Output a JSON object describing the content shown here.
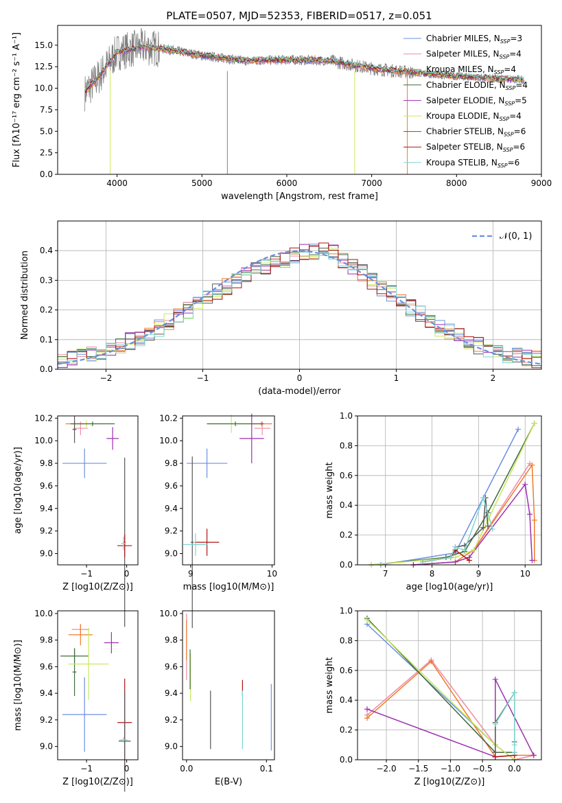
{
  "title": "PLATE=0507, MJD=52353, FIBERID=0517, z=0.051",
  "colors": {
    "blue": "#6a8fe0",
    "pink": "#f08aa3",
    "orange": "#f07a28",
    "darkgreen": "#3e6b3e",
    "purple": "#9b2fb0",
    "yellow": "#c8e85a",
    "gray": "#555555",
    "red": "#b01010",
    "cyan": "#7ed6d0",
    "obs": "#808080"
  },
  "chart_data": [
    {
      "type": "line",
      "xlabel": "wavelength [Angstrom, rest frame]",
      "ylabel": "Flux [f_λ 10^-17 erg cm^-2 s^-1 A^-1]",
      "xlim": [
        3300,
        9000
      ],
      "ylim": [
        0,
        17.3
      ],
      "xticks": [
        4000,
        5000,
        6000,
        7000,
        8000,
        9000
      ],
      "yticks": [
        0.0,
        2.5,
        5.0,
        7.5,
        10.0,
        12.5,
        15.0
      ],
      "legend_position": "top-right",
      "continuum_x": [
        3620,
        3800,
        4000,
        4300,
        4600,
        5000,
        5500,
        6000,
        6500,
        7000,
        7500,
        8000,
        8500,
        8800
      ],
      "continuum_y": [
        9.5,
        11.5,
        14.2,
        14.8,
        14.5,
        13.8,
        13.2,
        13.3,
        13.2,
        12.3,
        11.8,
        11.4,
        11.1,
        11.0
      ],
      "series": [
        {
          "name": "Chabrier MILES, N_SSP=3",
          "color": "blue"
        },
        {
          "name": "Salpeter MILES, N_SSP=4",
          "color": "pink"
        },
        {
          "name": "Kroupa MILES, N_SSP=4",
          "color": "orange"
        },
        {
          "name": "Chabrier ELODIE, N_SSP=4",
          "color": "darkgreen"
        },
        {
          "name": "Salpeter ELODIE, N_SSP=5",
          "color": "purple"
        },
        {
          "name": "Kroupa ELODIE, N_SSP=4",
          "color": "yellow"
        },
        {
          "name": "Chabrier STELIB, N_SSP=6",
          "color": "gray"
        },
        {
          "name": "Salpeter STELIB, N_SSP=6",
          "color": "red"
        },
        {
          "name": "Kroupa STELIB, N_SSP=6",
          "color": "cyan"
        }
      ]
    },
    {
      "type": "histogram",
      "xlabel": "(data-model)/error",
      "ylabel": "Normed distribution",
      "xlim": [
        -2.5,
        2.5
      ],
      "ylim": [
        0,
        0.5
      ],
      "xticks": [
        -2,
        -1,
        0,
        1,
        2
      ],
      "yticks": [
        0.0,
        0.1,
        0.2,
        0.3,
        0.4
      ],
      "grid": true,
      "legend_position": "top-right",
      "legend": "𝒩(0, 1)",
      "bin_width": 0.1,
      "shape_x": [
        -2.5,
        -2.0,
        -1.5,
        -1.0,
        -0.5,
        0.0,
        0.3,
        0.5,
        1.0,
        1.5,
        2.0,
        2.5
      ],
      "shape_y": [
        0.02,
        0.06,
        0.13,
        0.23,
        0.33,
        0.39,
        0.4,
        0.36,
        0.24,
        0.13,
        0.06,
        0.03
      ]
    },
    {
      "type": "scatter",
      "xlabel": "Z [log10(Z/Z⊙)]",
      "ylabel": "age [log10(age/yr)]",
      "xlim": [
        -1.72,
        0.28
      ],
      "ylim": [
        8.9,
        10.22
      ],
      "xticks": [
        -1,
        0
      ],
      "yticks": [
        9.0,
        9.2,
        9.4,
        9.6,
        9.8,
        10.0,
        10.2
      ],
      "points": [
        {
          "x": -1.3,
          "y": 10.15,
          "xe": 0.22,
          "ye": 0.02,
          "color": "orange"
        },
        {
          "x": -1.15,
          "y": 10.11,
          "xe": 0.18,
          "ye": 0.06,
          "color": "pink"
        },
        {
          "x": -1.0,
          "y": 10.15,
          "xe": 0.3,
          "ye": 0.03,
          "color": "yellow"
        },
        {
          "x": -0.85,
          "y": 10.15,
          "xe": 0.55,
          "ye": 0.02,
          "color": "darkgreen"
        },
        {
          "x": -1.3,
          "y": 10.1,
          "xe": 0.05,
          "ye": 0.12,
          "color": "gray"
        },
        {
          "x": -1.05,
          "y": 9.8,
          "xe": 0.55,
          "ye": 0.13,
          "color": "blue"
        },
        {
          "x": -0.35,
          "y": 10.02,
          "xe": 0.15,
          "ye": 0.1,
          "color": "purple"
        },
        {
          "x": -0.05,
          "y": 9.1,
          "xe": 0.02,
          "ye": 0.75,
          "color": "gray"
        },
        {
          "x": -0.05,
          "y": 9.07,
          "xe": 0.18,
          "ye": 0.1,
          "color": "red"
        },
        {
          "x": -0.08,
          "y": 9.09,
          "xe": 0.06,
          "ye": 0.06,
          "color": "cyan"
        }
      ]
    },
    {
      "type": "scatter",
      "xlabel": "mass [log10(M/M⊙)]",
      "ylabel": "",
      "xlim": [
        8.9,
        10.03
      ],
      "ylim": [
        8.9,
        10.22
      ],
      "xticks": [
        9,
        10
      ],
      "yticks": [
        9.0,
        9.2,
        9.4,
        9.6,
        9.8,
        10.0,
        10.2
      ],
      "points": [
        {
          "x": 9.87,
          "y": 10.15,
          "xe": 0.13,
          "ye": 0.02,
          "color": "orange"
        },
        {
          "x": 9.88,
          "y": 10.11,
          "xe": 0.1,
          "ye": 0.06,
          "color": "pink"
        },
        {
          "x": 9.5,
          "y": 10.15,
          "xe": 0.3,
          "ye": 0.08,
          "color": "yellow"
        },
        {
          "x": 9.55,
          "y": 10.15,
          "xe": 0.35,
          "ye": 0.02,
          "color": "darkgreen"
        },
        {
          "x": 9.2,
          "y": 9.8,
          "xe": 0.25,
          "ye": 0.13,
          "color": "blue"
        },
        {
          "x": 9.75,
          "y": 10.02,
          "xe": 0.15,
          "ye": 0.22,
          "color": "purple"
        },
        {
          "x": 9.02,
          "y": 9.1,
          "xe": 0.02,
          "ye": 0.76,
          "color": "gray"
        },
        {
          "x": 9.2,
          "y": 9.1,
          "xe": 0.15,
          "ye": 0.12,
          "color": "red"
        },
        {
          "x": 9.06,
          "y": 9.08,
          "xe": 0.15,
          "ye": 0.1,
          "color": "cyan"
        }
      ]
    },
    {
      "type": "line",
      "xlabel": "age [log10(age/yr)]",
      "ylabel": "mass weight",
      "xlim": [
        6.4,
        10.35
      ],
      "ylim": [
        0,
        1.0
      ],
      "xticks": [
        7,
        8,
        9,
        10
      ],
      "yticks": [
        0.0,
        0.2,
        0.4,
        0.6,
        0.8,
        1.0
      ],
      "grid": true,
      "series": [
        {
          "color": "blue",
          "x": [
            6.9,
            8.5,
            9.1,
            9.85
          ],
          "y": [
            0.0,
            0.08,
            0.45,
            0.91
          ]
        },
        {
          "color": "pink",
          "x": [
            7.6,
            8.5,
            8.9,
            10.1
          ],
          "y": [
            0.0,
            0.02,
            0.1,
            0.68
          ]
        },
        {
          "color": "orange",
          "x": [
            7.6,
            8.5,
            8.9,
            10.15,
            10.2,
            10.2
          ],
          "y": [
            0.0,
            0.02,
            0.1,
            0.67,
            0.3,
            0.03
          ]
        },
        {
          "color": "darkgreen",
          "x": [
            6.7,
            8.3,
            8.7,
            9.2,
            10.2
          ],
          "y": [
            0.0,
            0.05,
            0.09,
            0.35,
            0.95
          ]
        },
        {
          "color": "purple",
          "x": [
            7.6,
            8.5,
            8.8,
            10.0,
            10.1,
            10.15
          ],
          "y": [
            0.0,
            0.02,
            0.05,
            0.54,
            0.34,
            0.03
          ]
        },
        {
          "color": "yellow",
          "x": [
            6.7,
            8.5,
            8.9,
            9.2,
            10.2
          ],
          "y": [
            0.0,
            0.05,
            0.1,
            0.3,
            0.95
          ]
        },
        {
          "color": "gray",
          "x": [
            7.8,
            8.4,
            8.5,
            8.7,
            9.1,
            9.15,
            9.2
          ],
          "y": [
            0.02,
            0.05,
            0.12,
            0.13,
            0.25,
            0.45,
            0.26
          ]
        },
        {
          "color": "red",
          "x": [
            7.8,
            8.4,
            8.5,
            8.8
          ],
          "y": [
            0.02,
            0.05,
            0.1,
            0.03
          ]
        },
        {
          "color": "cyan",
          "x": [
            7.8,
            8.4,
            8.5,
            8.7,
            9.1,
            9.3
          ],
          "y": [
            0.02,
            0.05,
            0.12,
            0.1,
            0.45,
            0.24
          ]
        }
      ]
    },
    {
      "type": "scatter",
      "xlabel": "Z [log10(Z/Z⊙)]",
      "ylabel": "mass [log10(M/M⊙)]",
      "xlim": [
        -1.72,
        0.28
      ],
      "ylim": [
        8.9,
        10.02
      ],
      "xticks": [
        -1,
        0
      ],
      "yticks": [
        9.0,
        9.2,
        9.4,
        9.6,
        9.8,
        10.0
      ],
      "points": [
        {
          "x": -1.15,
          "y": 9.88,
          "xe": 0.22,
          "ye": 0.04,
          "color": "pink"
        },
        {
          "x": -1.15,
          "y": 9.84,
          "xe": 0.3,
          "ye": 0.08,
          "color": "orange"
        },
        {
          "x": -0.38,
          "y": 9.78,
          "xe": 0.18,
          "ye": 0.08,
          "color": "purple"
        },
        {
          "x": -1.3,
          "y": 9.68,
          "xe": 0.35,
          "ye": 0.05,
          "color": "darkgreen"
        },
        {
          "x": -1.3,
          "y": 9.56,
          "xe": 0.05,
          "ye": 0.18,
          "color": "darkgreen"
        },
        {
          "x": -0.95,
          "y": 9.62,
          "xe": 0.5,
          "ye": 0.27,
          "color": "yellow"
        },
        {
          "x": -1.05,
          "y": 9.24,
          "xe": 0.55,
          "ye": 0.28,
          "color": "blue"
        },
        {
          "x": -0.05,
          "y": 9.18,
          "xe": 0.18,
          "ye": 0.33,
          "color": "red"
        },
        {
          "x": -0.05,
          "y": 9.04,
          "xe": 0.15,
          "ye": 0.38,
          "color": "gray"
        },
        {
          "x": -0.08,
          "y": 9.05,
          "xe": 0.1,
          "ye": 0.02,
          "color": "cyan"
        }
      ]
    },
    {
      "type": "scatter",
      "xlabel": "E(B-V)",
      "ylabel": "",
      "xlim": [
        -0.005,
        0.11
      ],
      "ylim": [
        8.9,
        10.02
      ],
      "xticks": [
        0.0,
        0.1
      ],
      "yticks": [
        9.0,
        9.2,
        9.4,
        9.6,
        9.8,
        10.0
      ],
      "points": [
        {
          "x": 0.0,
          "y": 9.75,
          "xe": 0,
          "ye": 0.25,
          "color": "pink"
        },
        {
          "x": 0.0,
          "y": 9.8,
          "xe": 0,
          "ye": 0.15,
          "color": "orange"
        },
        {
          "x": 0.005,
          "y": 9.52,
          "xe": 0,
          "ye": 0.18,
          "color": "yellow"
        },
        {
          "x": 0.0045,
          "y": 9.58,
          "xe": 0,
          "ye": 0.15,
          "color": "darkgreen"
        },
        {
          "x": 0.03,
          "y": 9.2,
          "xe": 0,
          "ye": 0.22,
          "color": "gray"
        },
        {
          "x": 0.07,
          "y": 9.44,
          "xe": 0,
          "ye": 0.06,
          "color": "red"
        },
        {
          "x": 0.07,
          "y": 9.2,
          "xe": 0,
          "ye": 0.22,
          "color": "cyan"
        },
        {
          "x": 0.106,
          "y": 9.22,
          "xe": 0,
          "ye": 0.25,
          "color": "blue"
        }
      ]
    },
    {
      "type": "line",
      "xlabel": "Z [log10(Z/Z⊙)]",
      "ylabel": "mass weight",
      "xlim": [
        -2.45,
        0.42
      ],
      "ylim": [
        0,
        1.0
      ],
      "xticks": [
        -2.0,
        -1.5,
        -1.0,
        -0.5,
        0.0
      ],
      "yticks": [
        0.0,
        0.2,
        0.4,
        0.6,
        0.8,
        1.0
      ],
      "grid": true,
      "series": [
        {
          "color": "blue",
          "x": [
            -2.3,
            -0.3,
            0.0
          ],
          "y": [
            0.91,
            0.1,
            0.0
          ]
        },
        {
          "color": "pink",
          "x": [
            -2.3,
            -1.3,
            -0.3,
            0.0,
            0.3
          ],
          "y": [
            0.3,
            0.67,
            0.1,
            0.0,
            0.03
          ]
        },
        {
          "color": "orange",
          "x": [
            -2.3,
            -1.3,
            -0.3,
            0.0,
            0.3
          ],
          "y": [
            0.28,
            0.66,
            0.02,
            0.03,
            0.03
          ]
        },
        {
          "color": "darkgreen",
          "x": [
            -2.3,
            -0.3,
            0.0
          ],
          "y": [
            0.95,
            0.05,
            0.05
          ]
        },
        {
          "color": "purple",
          "x": [
            -2.3,
            -0.3,
            -0.3,
            0.3
          ],
          "y": [
            0.34,
            0.02,
            0.54,
            0.03
          ]
        },
        {
          "color": "yellow",
          "x": [
            -2.3,
            -0.3,
            0.0
          ],
          "y": [
            0.94,
            0.1,
            0.0
          ]
        },
        {
          "color": "gray",
          "x": [
            -0.3,
            -0.3,
            0.0,
            0.0
          ],
          "y": [
            0.05,
            0.25,
            0.45,
            0.12
          ]
        },
        {
          "color": "red",
          "x": [
            -0.3,
            0.0
          ],
          "y": [
            0.02,
            0.03
          ]
        },
        {
          "color": "cyan",
          "x": [
            -0.3,
            0.0,
            0.0,
            0.0
          ],
          "y": [
            0.24,
            0.45,
            0.1,
            0.05
          ]
        }
      ]
    }
  ]
}
